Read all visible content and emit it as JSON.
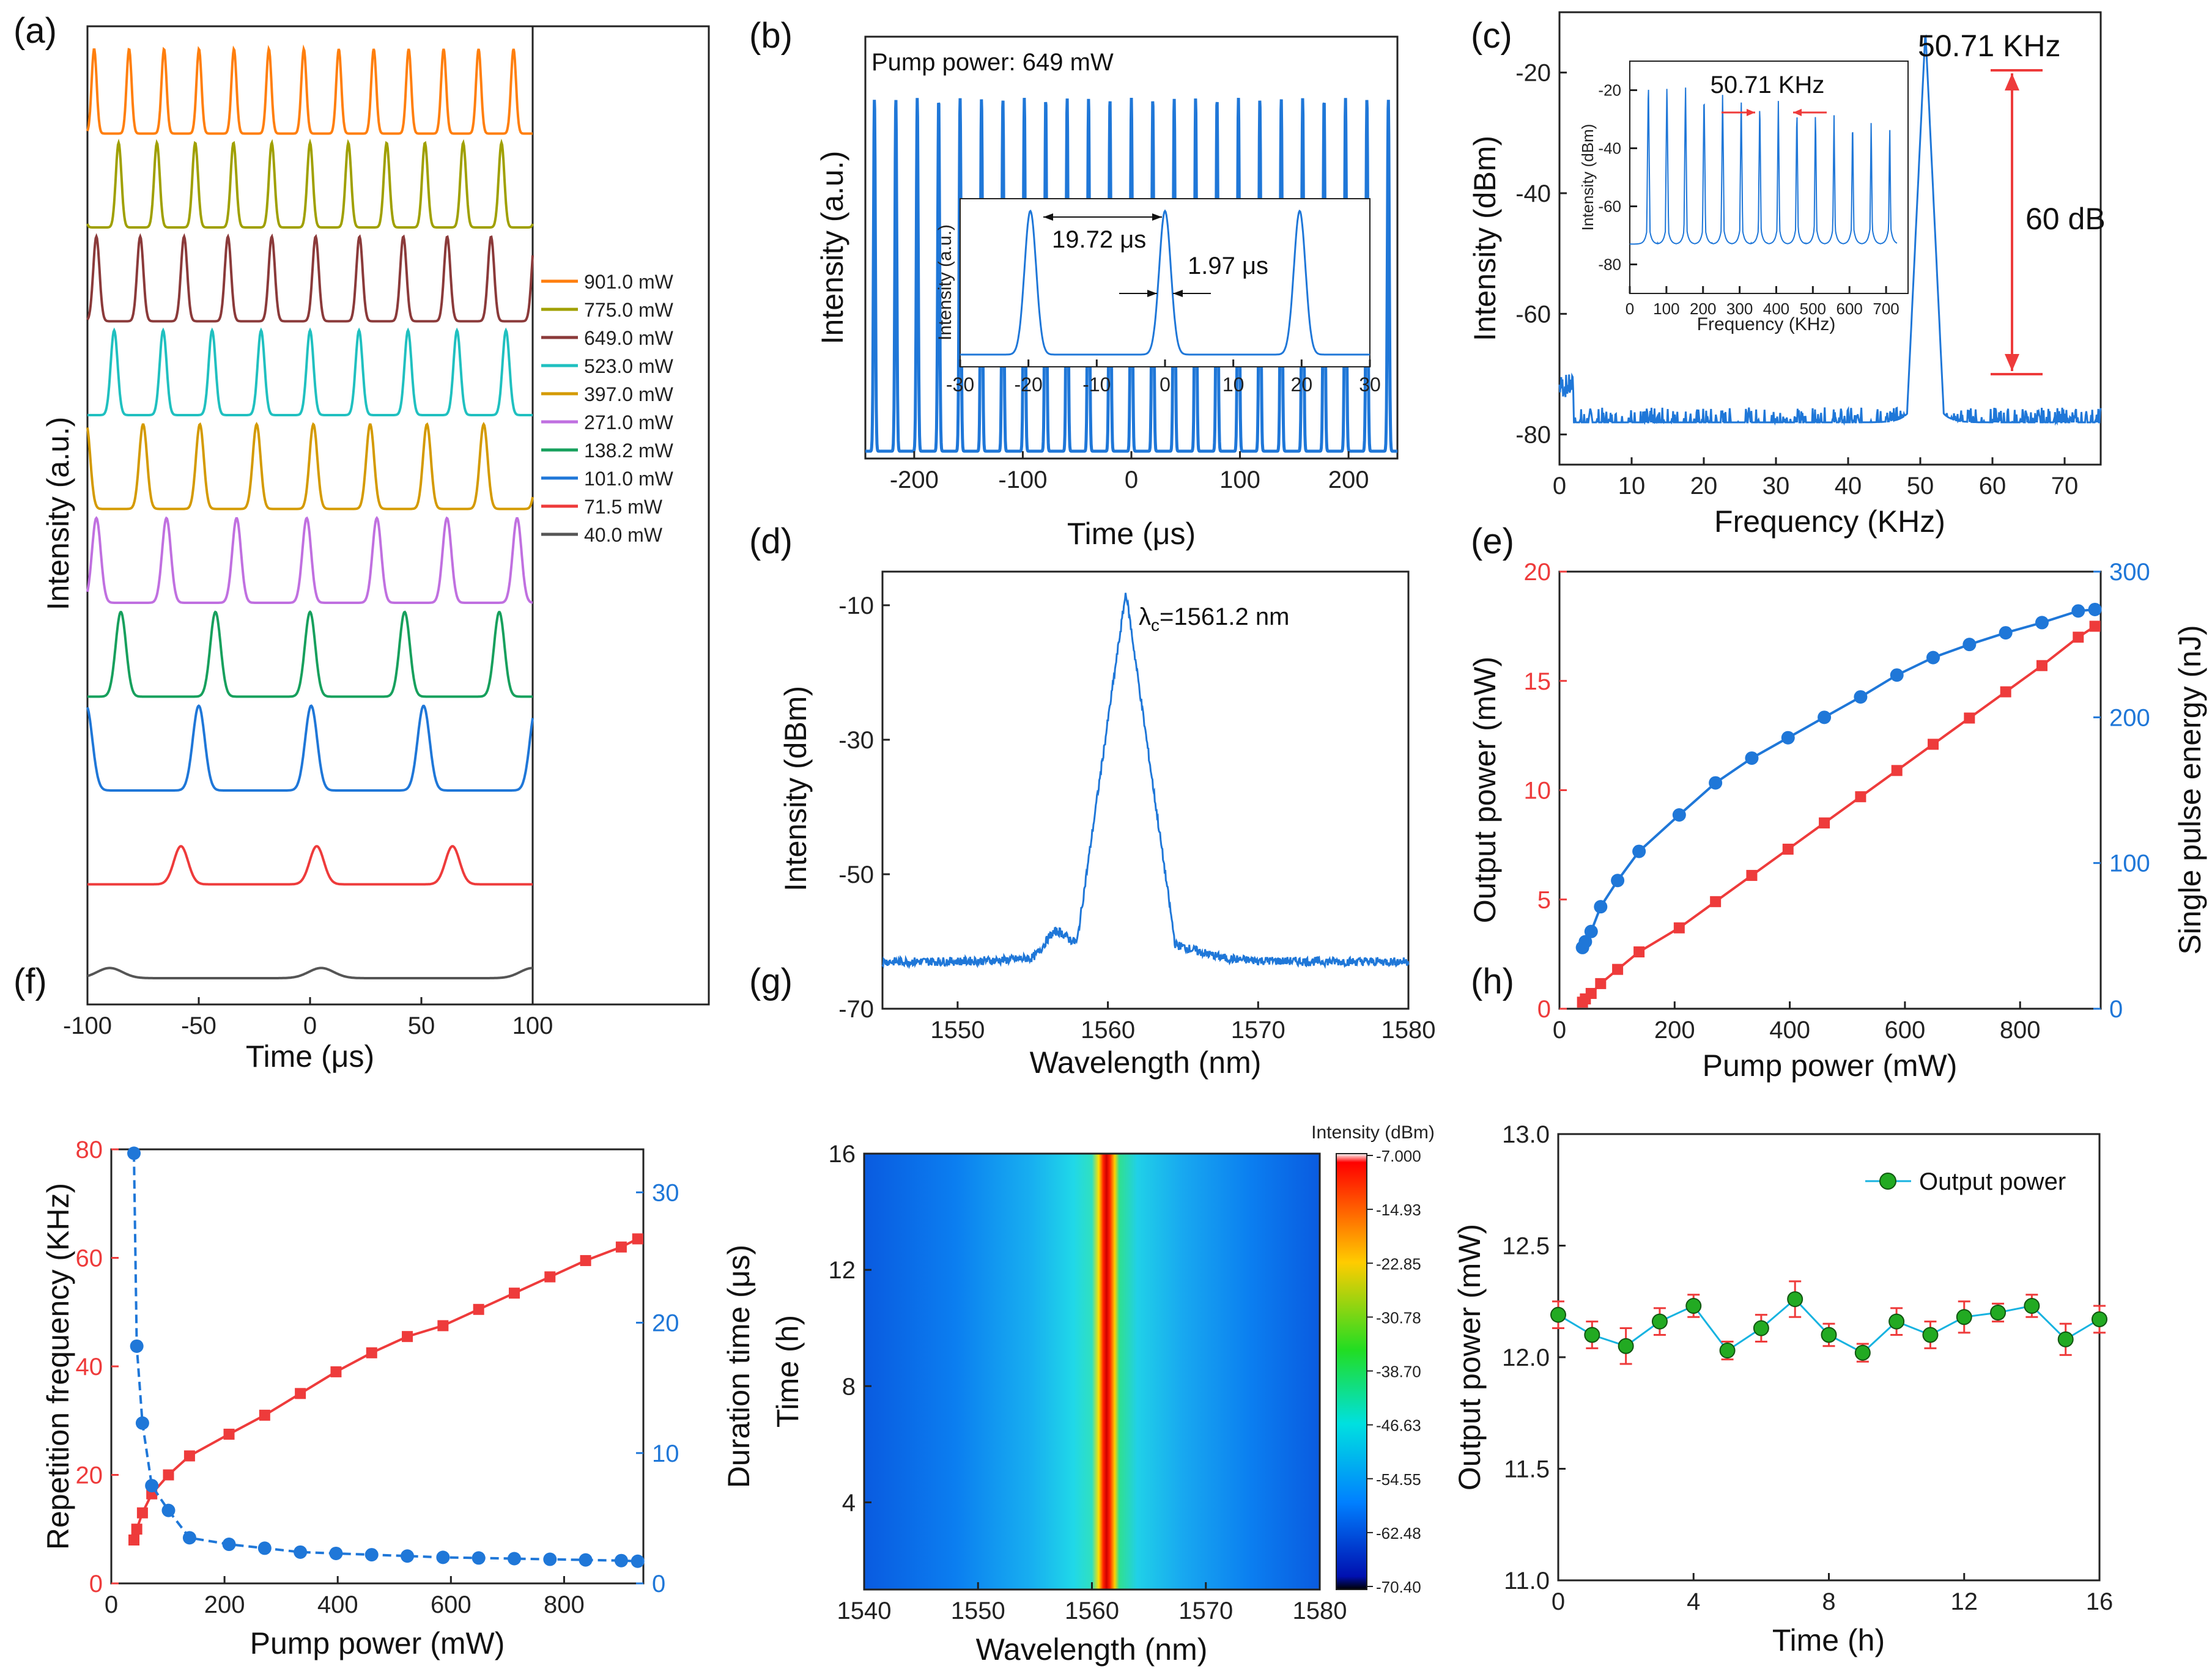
{
  "colors": {
    "blue": "#1f77d8",
    "red": "#ee3b3b",
    "green": "#22aa22",
    "axis": "#222222"
  },
  "panels": {
    "a": {
      "label": "(a)"
    },
    "b": {
      "label": "(b)"
    },
    "c": {
      "label": "(c)"
    },
    "d": {
      "label": "(d)"
    },
    "e": {
      "label": "(e)"
    },
    "f": {
      "label": "(f)"
    },
    "g": {
      "label": "(g)"
    },
    "h": {
      "label": "(h)"
    }
  },
  "chart_data": [
    {
      "id": "a",
      "type": "line",
      "title": "",
      "xlabel": "Time (μs)",
      "ylabel": "Intensity (a.u.)",
      "xlim": [
        -100,
        100
      ],
      "xticks": [
        "-100",
        "-50",
        "0",
        "50",
        "100"
      ],
      "series": [
        {
          "name": "901.0 mW",
          "color": "#ff7f0e",
          "period": 15.7,
          "offset": -97,
          "width": 1.6,
          "amp": 1.0
        },
        {
          "name": "775.0 mW",
          "color": "#a0a000",
          "period": 17.2,
          "offset": -86,
          "width": 1.8,
          "amp": 1.0
        },
        {
          "name": "649.0 mW",
          "color": "#8b3a3a",
          "period": 19.7,
          "offset": -96,
          "width": 2.0,
          "amp": 1.0
        },
        {
          "name": "523.0 mW",
          "color": "#20c0c0",
          "period": 22.0,
          "offset": -88,
          "width": 2.2,
          "amp": 1.0
        },
        {
          "name": "397.0 mW",
          "color": "#d49a00",
          "period": 25.5,
          "offset": -75,
          "width": 2.5,
          "amp": 1.0
        },
        {
          "name": "271.0 mW",
          "color": "#c070e0",
          "period": 31.5,
          "offset": -96,
          "width": 2.8,
          "amp": 1.0
        },
        {
          "name": "138.2 mW",
          "color": "#17a05d",
          "period": 42.5,
          "offset": -85,
          "width": 3.3,
          "amp": 1.0
        },
        {
          "name": "101.0 mW",
          "color": "#1f77d8",
          "period": 50.5,
          "offset": -50,
          "width": 3.8,
          "amp": 1.0
        },
        {
          "name": "71.5 mW",
          "color": "#ee3b3b",
          "period": 61.0,
          "offset": -58,
          "width": 4.5,
          "amp": 0.45
        },
        {
          "name": "40.0 mW",
          "color": "#555555",
          "period": 95.0,
          "offset": 5,
          "width": 8.0,
          "amp": 0.12
        }
      ]
    },
    {
      "id": "b",
      "type": "line",
      "xlabel": "Time (μs)",
      "ylabel": "Intensity (a.u.)",
      "xlim": [
        -245,
        245
      ],
      "xticks": [
        "-200",
        "-100",
        "0",
        "100",
        "200"
      ],
      "annotation": "Pump power: 649 mW",
      "period": 19.72,
      "inset": {
        "xlabel": "",
        "ylabel": "Intensity (a.u.)",
        "xlim": [
          -30,
          30
        ],
        "xticks": [
          "-30",
          "-20",
          "-10",
          "0",
          "10",
          "20",
          "30"
        ],
        "period_label": "19.72 μs",
        "width_label": "1.97 μs"
      }
    },
    {
      "id": "c",
      "type": "line",
      "xlabel": "Frequency (KHz)",
      "ylabel": "Intensity (dBm)",
      "xlim": [
        0,
        75
      ],
      "ylim": [
        -85,
        -10
      ],
      "xticks": [
        "0",
        "10",
        "20",
        "30",
        "40",
        "50",
        "60",
        "70"
      ],
      "yticks": [
        "-20",
        "-40",
        "-60",
        "-80"
      ],
      "peak_label": "50.71 KHz",
      "snr_label": "60 dB",
      "peak_frequency": 50.71,
      "inset": {
        "xlabel": "Frequency (KHz)",
        "ylabel": "Intensity (dBm)",
        "xticks": [
          "0",
          "100",
          "200",
          "300",
          "400",
          "500",
          "600",
          "700"
        ],
        "yticks": [
          "-20",
          "-40",
          "-60",
          "-80"
        ],
        "spacing_label": "50.71 KHz"
      }
    },
    {
      "id": "d",
      "type": "line",
      "xlabel": "Wavelength (nm)",
      "ylabel": "Intensity (dBm)",
      "xlim": [
        1545,
        1580
      ],
      "ylim": [
        -70,
        -5
      ],
      "xticks": [
        "1550",
        "1560",
        "1570",
        "1580"
      ],
      "yticks": [
        "-10",
        "-30",
        "-50",
        "-70"
      ],
      "peak_label_main": "λ",
      "peak_label_sub": "c",
      "peak_label_rest": "=1561.2 nm",
      "center_wavelength": 1561.2
    },
    {
      "id": "e",
      "type": "line",
      "xlabel": "Pump power (mW)",
      "ylabel": "Output power (mW)",
      "y2label": "Single pulse energy (nJ)",
      "xlim": [
        0,
        940
      ],
      "ylim": [
        0,
        20
      ],
      "y2lim": [
        0,
        300
      ],
      "xticks": [
        "0",
        "200",
        "400",
        "600",
        "800"
      ],
      "yticks": [
        "0",
        "5",
        "10",
        "15",
        "20"
      ],
      "y2ticks": [
        "0",
        "100",
        "200",
        "300"
      ],
      "x": [
        40,
        45,
        55,
        71.5,
        101,
        138.2,
        208,
        271,
        334,
        397,
        460,
        523,
        586,
        649,
        712,
        775,
        838,
        901,
        930
      ],
      "series": [
        {
          "name": "Output power",
          "axis": "left",
          "color": "#ee3b3b",
          "values": [
            0.3,
            0.45,
            0.7,
            1.15,
            1.8,
            2.6,
            3.7,
            4.9,
            6.1,
            7.3,
            8.5,
            9.7,
            10.9,
            12.1,
            13.3,
            14.5,
            15.7,
            17.0,
            17.5
          ]
        },
        {
          "name": "Single pulse energy",
          "axis": "right",
          "color": "#1f77d8",
          "values": [
            42,
            46,
            53,
            70,
            88,
            108,
            133,
            155,
            172,
            186,
            200,
            214,
            229,
            241,
            250,
            258,
            265,
            273,
            274
          ]
        }
      ]
    },
    {
      "id": "f",
      "type": "line",
      "xlabel": "Pump power (mW)",
      "ylabel": "Repetition frequency (KHz)",
      "y2label": "Duration time (μs)",
      "xlim": [
        0,
        940
      ],
      "ylim": [
        0,
        80
      ],
      "y2lim": [
        0,
        33.3
      ],
      "xticks": [
        "0",
        "200",
        "400",
        "600",
        "800"
      ],
      "yticks": [
        "0",
        "20",
        "40",
        "60",
        "80"
      ],
      "y2ticks": [
        "0",
        "10",
        "20",
        "30"
      ],
      "x": [
        40,
        45,
        55,
        71.5,
        101,
        138.2,
        208,
        271,
        334,
        397,
        460,
        523,
        586,
        649,
        712,
        775,
        838,
        901,
        930
      ],
      "series": [
        {
          "name": "Repetition frequency",
          "axis": "left",
          "color": "#ee3b3b",
          "values": [
            8,
            10,
            13,
            16.5,
            20,
            23.5,
            27.5,
            31,
            35,
            39,
            42.5,
            45.5,
            47.5,
            50.5,
            53.5,
            56.5,
            59.5,
            62,
            63.5
          ]
        },
        {
          "name": "Duration time",
          "axis": "right",
          "color": "#1f77d8",
          "values": [
            33,
            18.2,
            12.3,
            7.5,
            5.6,
            3.5,
            3.0,
            2.7,
            2.4,
            2.3,
            2.2,
            2.1,
            2.0,
            1.95,
            1.9,
            1.85,
            1.8,
            1.75,
            1.7
          ]
        }
      ]
    },
    {
      "id": "g",
      "type": "heatmap",
      "xlabel": "Wavelength (nm)",
      "ylabel": "Time (h)",
      "xlim": [
        1540,
        1580
      ],
      "ylim": [
        1,
        16
      ],
      "xticks": [
        "1540",
        "1550",
        "1560",
        "1570",
        "1580"
      ],
      "yticks": [
        "4",
        "8",
        "12",
        "16"
      ],
      "colorbar_title": "Intensity (dBm)",
      "colorbar_ticks": [
        "-7.000",
        "-14.93",
        "-22.85",
        "-30.78",
        "-38.70",
        "-46.63",
        "-54.55",
        "-62.48",
        "-70.40"
      ],
      "center_wavelength": 1561.2
    },
    {
      "id": "h",
      "type": "scatter",
      "xlabel": "Time (h)",
      "ylabel": "Output power (mW)",
      "xlim": [
        0,
        16
      ],
      "ylim": [
        11.0,
        13.0
      ],
      "xticks": [
        "0",
        "4",
        "8",
        "12",
        "16"
      ],
      "yticks": [
        "11.0",
        "11.5",
        "12.0",
        "12.5",
        "13.0"
      ],
      "legend": "Output power",
      "x": [
        0,
        1,
        2,
        3,
        4,
        5,
        6,
        7,
        8,
        9,
        10,
        11,
        12,
        13,
        14,
        15,
        16
      ],
      "values": [
        12.19,
        12.1,
        12.05,
        12.16,
        12.23,
        12.03,
        12.13,
        12.26,
        12.1,
        12.02,
        12.16,
        12.1,
        12.18,
        12.2,
        12.23,
        12.08,
        12.17
      ],
      "errors": [
        0.06,
        0.06,
        0.08,
        0.06,
        0.05,
        0.04,
        0.06,
        0.08,
        0.05,
        0.04,
        0.06,
        0.06,
        0.07,
        0.04,
        0.05,
        0.07,
        0.06
      ]
    }
  ]
}
